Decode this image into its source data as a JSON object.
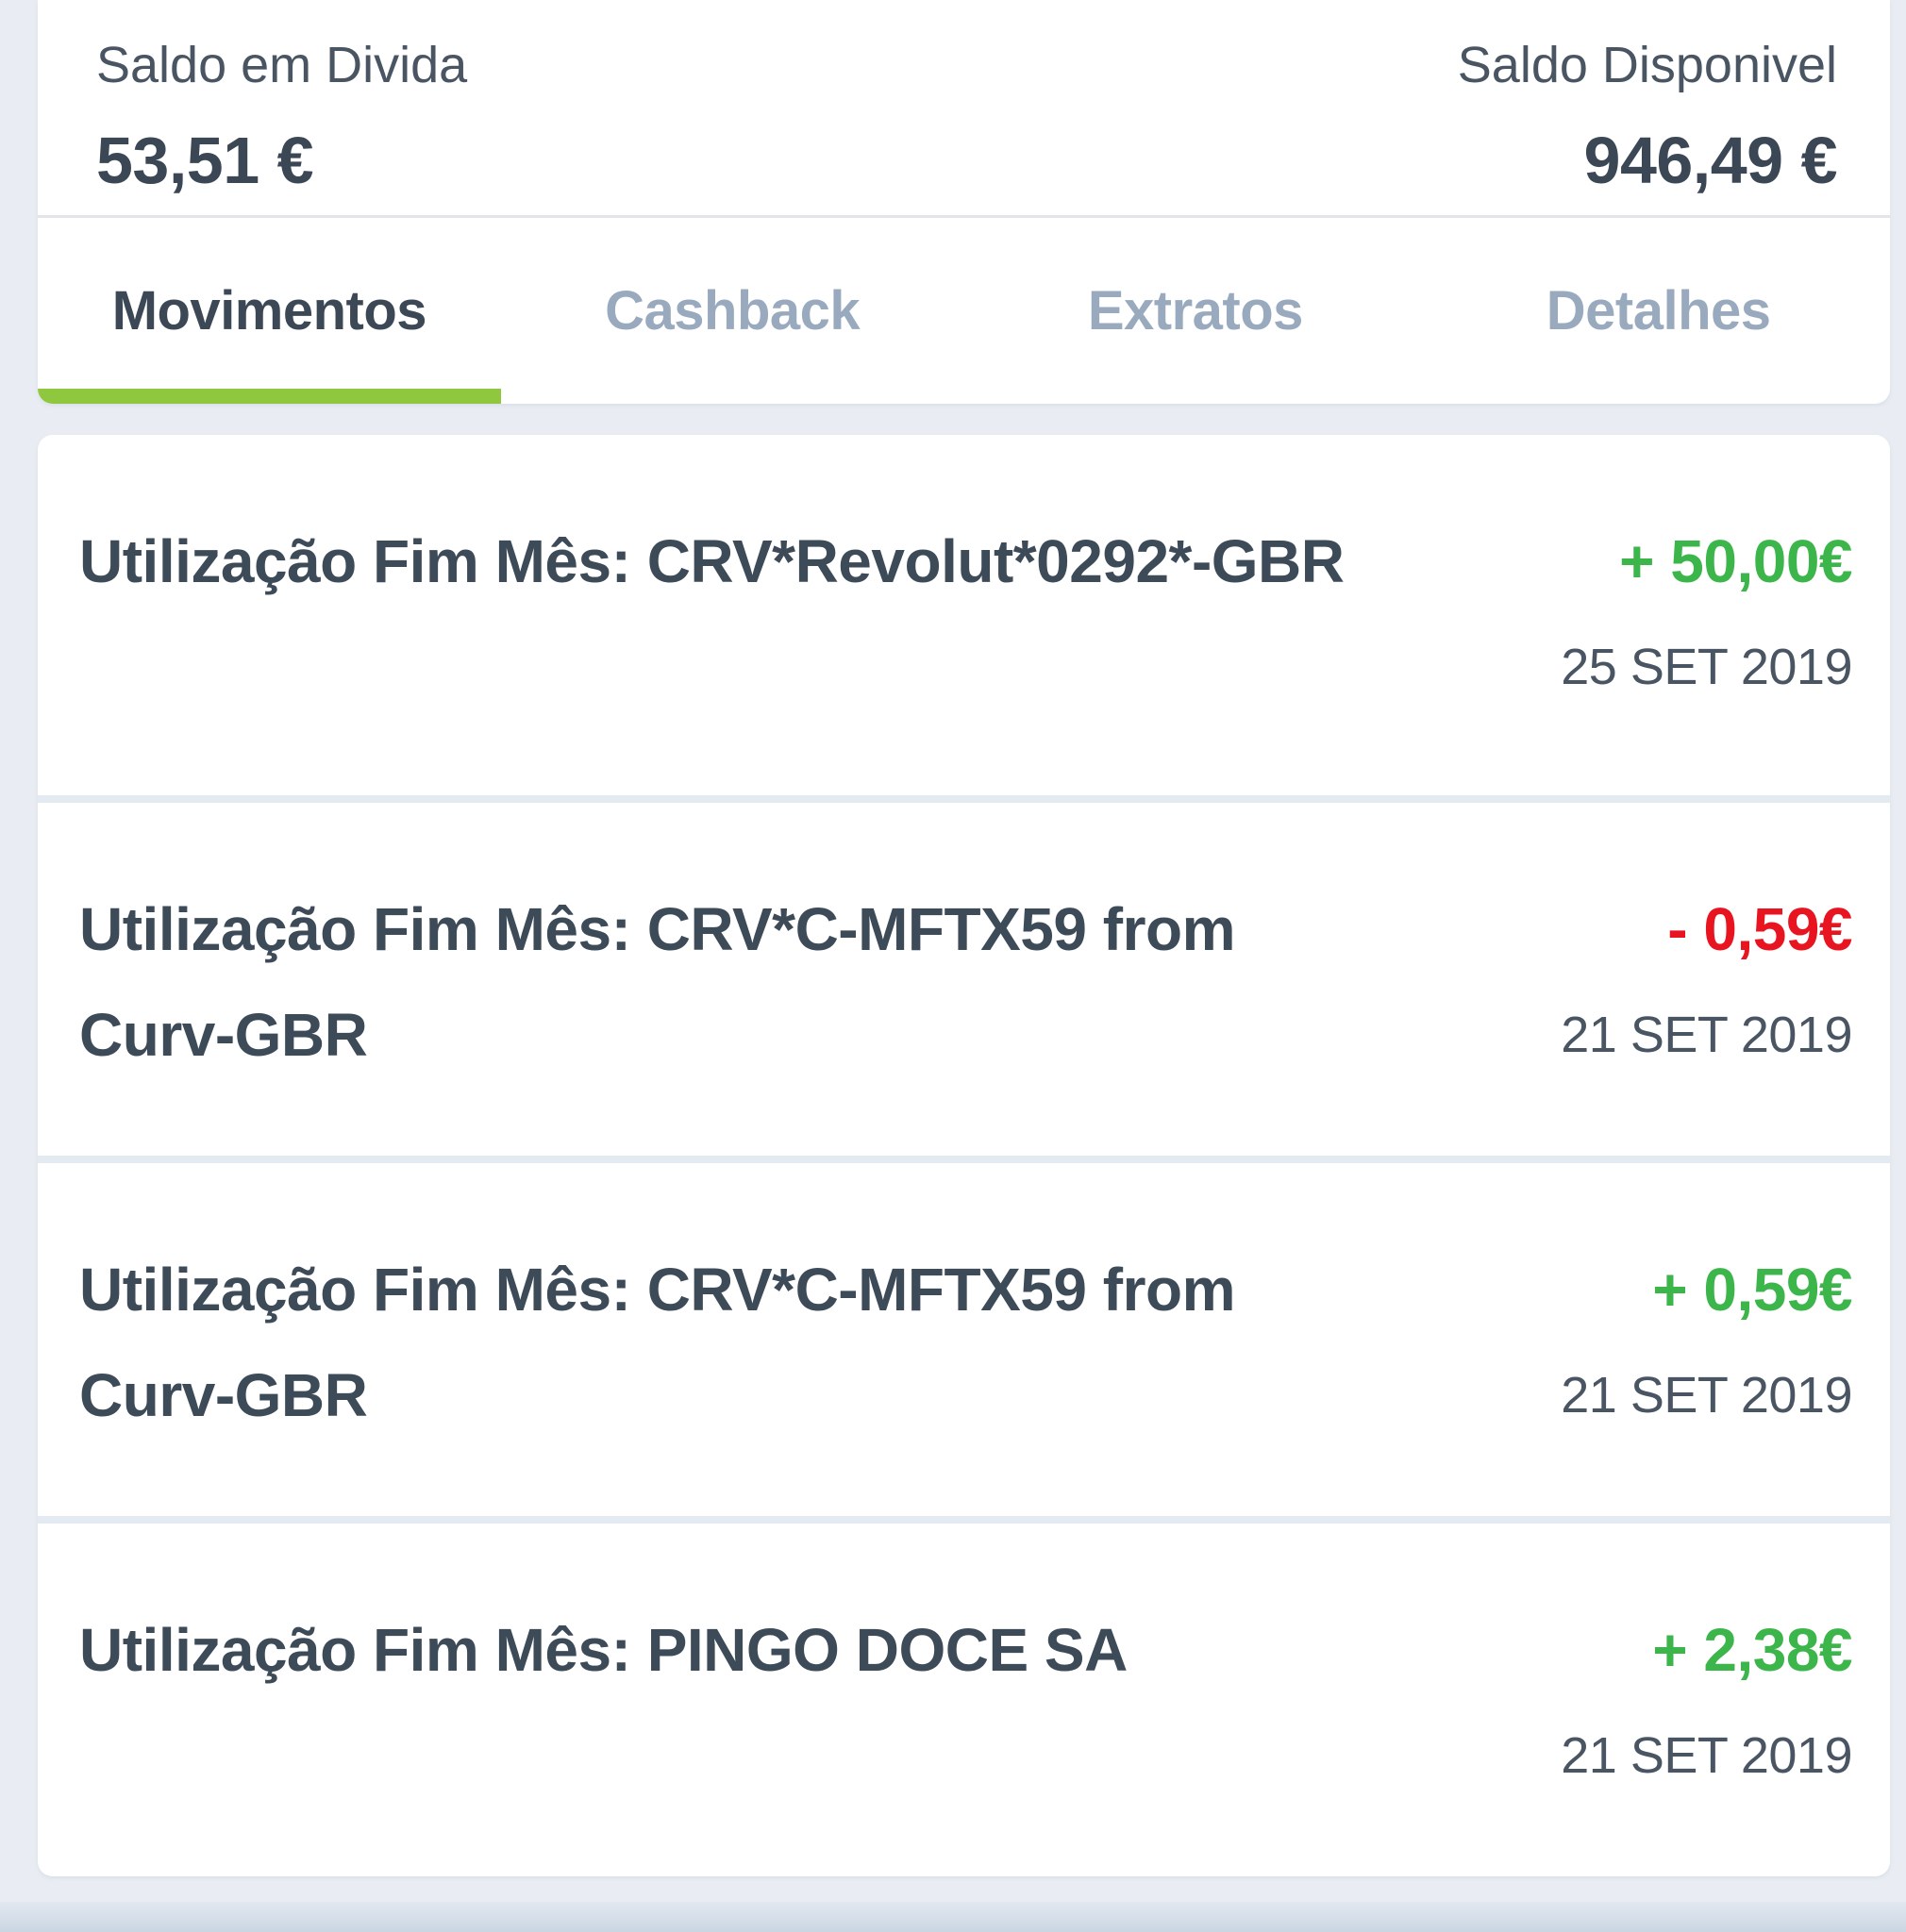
{
  "balance_header": {
    "debt_label": "Saldo em Divida",
    "debt_value": "53,51 €",
    "available_label": "Saldo Disponivel",
    "available_value": "946,49 €"
  },
  "tabs": [
    {
      "label": "Movimentos",
      "active": true
    },
    {
      "label": "Cashback",
      "active": false
    },
    {
      "label": "Extratos",
      "active": false
    },
    {
      "label": "Detalhes",
      "active": false
    }
  ],
  "transactions": [
    {
      "description": "Utilização Fim Mês: CRV*Revolut*0292*-GBR",
      "amount": "+ 50,00€",
      "direction": "credit",
      "date": "25 SET 2019"
    },
    {
      "description": "Utilização Fim Mês: CRV*C-MFTX59 from\nCurv-GBR",
      "amount": "- 0,59€",
      "direction": "debit",
      "date": "21 SET 2019"
    },
    {
      "description": "Utilização Fim Mês: CRV*C-MFTX59 from\nCurv-GBR",
      "amount": "+ 0,59€",
      "direction": "credit",
      "date": "21 SET 2019"
    },
    {
      "description": "Utilização Fim Mês: PINGO DOCE SA",
      "amount": "+ 2,38€",
      "direction": "credit",
      "date": "21 SET 2019"
    }
  ],
  "colors": {
    "accent_lime": "#8fc73e",
    "credit_green": "#3cb54b",
    "debit_red": "#e8141f",
    "text_dark": "#3b4754",
    "text_muted": "#4a5563",
    "tab_inactive": "#9aaabe",
    "background": "#e9edf3"
  }
}
